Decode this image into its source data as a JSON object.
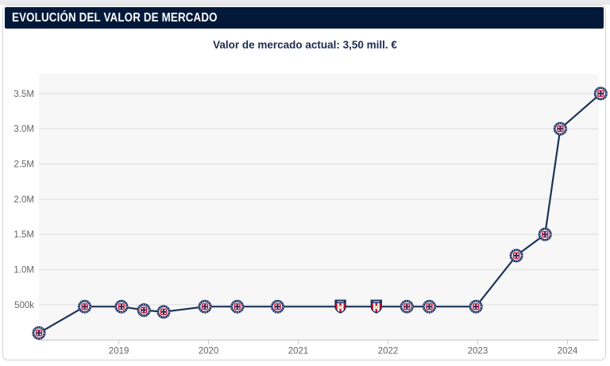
{
  "header": {
    "title": "EVOLUCIÓN DEL VALOR DE MERCADO"
  },
  "subtitle": {
    "label": "Valor de mercado actual:",
    "value": "3,50 mill. €"
  },
  "colors": {
    "header_bg": "#03193a",
    "header_text": "#ffffff",
    "subtitle_text": "#1b2c4e",
    "plot_bg": "#f7f7f8",
    "grid": "#dddddd",
    "axis": "#c8c8c8",
    "tick_label": "#666666",
    "line": "#1d3457",
    "crest_navy": "#16295c",
    "crest_red": "#c8102e",
    "crest_gold": "#c9a43e",
    "top_strip": "#e7e9ed",
    "card_border": "#cfd3d9"
  },
  "chart_data": {
    "type": "line",
    "title": "EVOLUCIÓN DEL VALOR DE MERCADO",
    "subtitle": "Valor de mercado actual: 3,50 mill. €",
    "xlabel": "",
    "ylabel": "",
    "grid": true,
    "legend": false,
    "xlim": [
      2018.11,
      2024.35
    ],
    "ylim": [
      0,
      3780000
    ],
    "x_ticks": [
      {
        "label": "2019",
        "value": 2019
      },
      {
        "label": "2020",
        "value": 2020
      },
      {
        "label": "2021",
        "value": 2021
      },
      {
        "label": "2022",
        "value": 2022
      },
      {
        "label": "2023",
        "value": 2023
      },
      {
        "label": "2024",
        "value": 2024
      }
    ],
    "y_ticks": [
      {
        "label": "500k",
        "value": 500000
      },
      {
        "label": "1.0M",
        "value": 1000000
      },
      {
        "label": "1.5M",
        "value": 1500000
      },
      {
        "label": "2.0M",
        "value": 2000000
      },
      {
        "label": "2.5M",
        "value": 2500000
      },
      {
        "label": "3.0M",
        "value": 3000000
      },
      {
        "label": "3.5M",
        "value": 3500000
      }
    ],
    "points": [
      {
        "x": 2018.11,
        "value": 100000,
        "icon": "cruz-azul-crest"
      },
      {
        "x": 2018.62,
        "value": 475000,
        "icon": "cruz-azul-crest"
      },
      {
        "x": 2019.03,
        "value": 475000,
        "icon": "cruz-azul-crest"
      },
      {
        "x": 2019.28,
        "value": 425000,
        "icon": "cruz-azul-crest"
      },
      {
        "x": 2019.5,
        "value": 400000,
        "icon": "cruz-azul-crest"
      },
      {
        "x": 2019.96,
        "value": 475000,
        "icon": "cruz-azul-crest"
      },
      {
        "x": 2020.32,
        "value": 475000,
        "icon": "cruz-azul-crest"
      },
      {
        "x": 2020.77,
        "value": 475000,
        "icon": "cruz-azul-crest"
      },
      {
        "x": 2021.47,
        "value": 475000,
        "icon": "striped-shield-crest"
      },
      {
        "x": 2021.87,
        "value": 475000,
        "icon": "striped-shield-crest"
      },
      {
        "x": 2022.21,
        "value": 475000,
        "icon": "cruz-azul-crest"
      },
      {
        "x": 2022.46,
        "value": 475000,
        "icon": "cruz-azul-crest"
      },
      {
        "x": 2022.98,
        "value": 475000,
        "icon": "cruz-azul-crest"
      },
      {
        "x": 2023.43,
        "value": 1200000,
        "icon": "cruz-azul-crest"
      },
      {
        "x": 2023.75,
        "value": 1500000,
        "icon": "cruz-azul-crest"
      },
      {
        "x": 2023.92,
        "value": 3000000,
        "icon": "cruz-azul-crest"
      },
      {
        "x": 2024.37,
        "value": 3500000,
        "icon": "cruz-azul-crest"
      }
    ]
  }
}
